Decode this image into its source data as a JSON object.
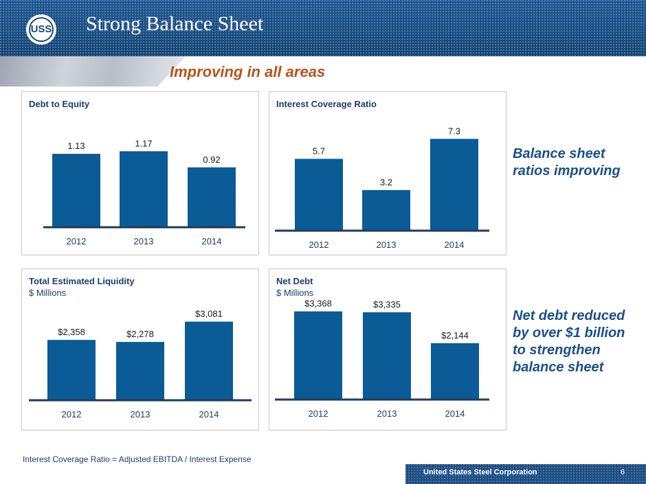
{
  "header": {
    "title": "Strong Balance Sheet",
    "logo_text": "USS"
  },
  "subtitle": "Improving in all areas",
  "callouts": {
    "ratios": [
      "Balance sheet",
      "ratios improving"
    ],
    "net_debt": [
      "Net debt reduced",
      "by over $1 billion",
      "to strengthen",
      "balance sheet"
    ]
  },
  "footnote": "Interest Coverage Ratio = Adjusted EBITDA / Interest Expense",
  "footer": {
    "company": "United States Steel Corporation",
    "page": "6"
  },
  "colors": {
    "bar": "#0b5b96",
    "brand": "#1a4a7e",
    "accent": "#b5541c",
    "axis": "#1f3a5f"
  },
  "chart_data": [
    {
      "type": "bar",
      "title": "Debt to Equity",
      "subtitle": "",
      "categories": [
        "2012",
        "2013",
        "2014"
      ],
      "values": [
        1.13,
        1.17,
        0.92
      ],
      "labels": [
        "1.13",
        "1.17",
        "0.92"
      ],
      "ylim": [
        0,
        1.6
      ]
    },
    {
      "type": "bar",
      "title": "Interest Coverage Ratio",
      "subtitle": "",
      "categories": [
        "2012",
        "2013",
        "2014"
      ],
      "values": [
        5.7,
        3.2,
        7.3
      ],
      "labels": [
        "5.7",
        "3.2",
        "7.3"
      ],
      "ylim": [
        0,
        8.8
      ]
    },
    {
      "type": "bar",
      "title": "Total Estimated Liquidity",
      "subtitle": "$ Millions",
      "categories": [
        "2012",
        "2013",
        "2014"
      ],
      "values": [
        2358,
        2278,
        3081
      ],
      "labels": [
        "$2,358",
        "$2,278",
        "$3,081"
      ],
      "ylim": [
        0,
        3800
      ]
    },
    {
      "type": "bar",
      "title": "Net Debt",
      "subtitle": "$ Millions",
      "categories": [
        "2012",
        "2013",
        "2014"
      ],
      "values": [
        3368,
        3335,
        2144
      ],
      "labels": [
        "$3,368",
        "$3,335",
        "$2,144"
      ],
      "ylim": [
        0,
        3700
      ]
    }
  ]
}
